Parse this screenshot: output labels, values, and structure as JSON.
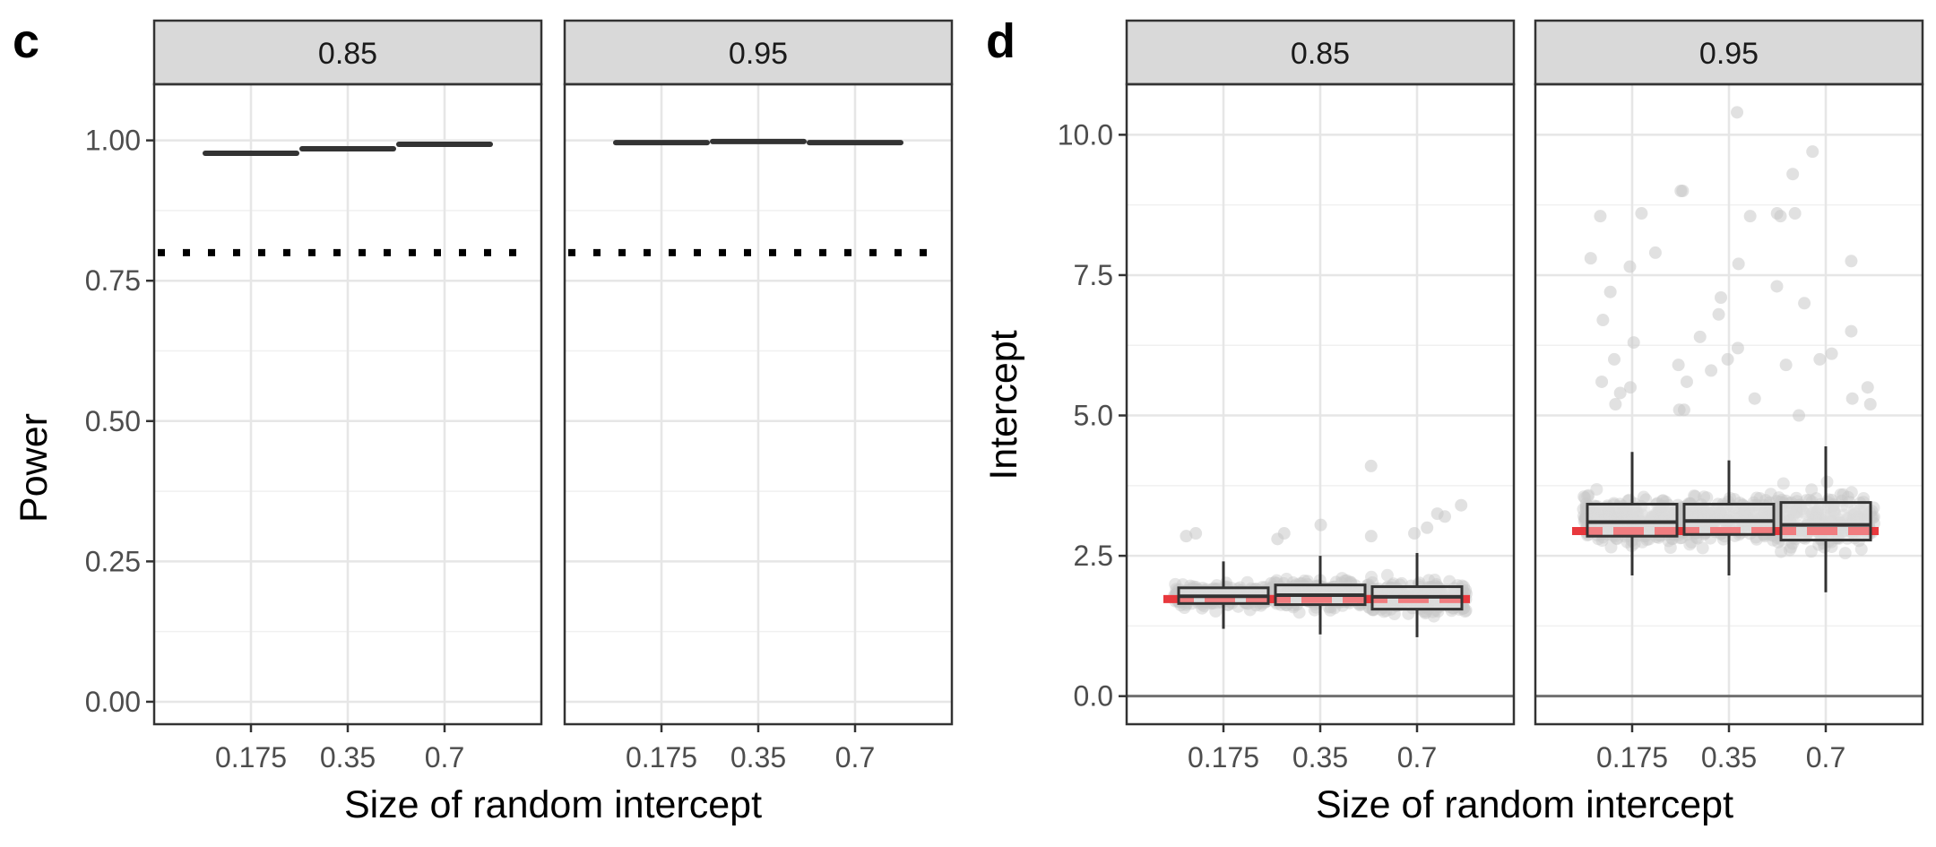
{
  "chart_data": [
    {
      "panel": "c",
      "type": "scatter",
      "facets": [
        "0.85",
        "0.95"
      ],
      "categories": [
        "0.175",
        "0.35",
        "0.7"
      ],
      "xlabel": "Size of random intercept",
      "ylabel": "Power",
      "ylim": [
        -0.04,
        1.1
      ],
      "yticks": [
        "0.00",
        "0.25",
        "0.50",
        "0.75",
        "1.00"
      ],
      "yticks_values": [
        0,
        0.25,
        0.5,
        0.75,
        1.0
      ],
      "grid": true,
      "reference_line": {
        "y": 0.8,
        "style": "dotted"
      },
      "series": [
        {
          "facet": "0.85",
          "values": [
            0.977,
            0.985,
            0.993
          ]
        },
        {
          "facet": "0.95",
          "values": [
            0.996,
            0.998,
            0.996
          ]
        }
      ]
    },
    {
      "panel": "d",
      "type": "box",
      "facets": [
        "0.85",
        "0.95"
      ],
      "categories": [
        "0.175",
        "0.35",
        "0.7"
      ],
      "xlabel": "Size of random intercept",
      "ylabel": "Intercept",
      "ylim": [
        -0.5,
        10.9
      ],
      "yticks": [
        "0.0",
        "2.5",
        "5.0",
        "7.5",
        "10.0"
      ],
      "yticks_values": [
        0,
        2.5,
        5,
        7.5,
        10
      ],
      "grid": true,
      "reference_line": {
        "y": 0,
        "style": "solid",
        "color": "#707070"
      },
      "point_color": "#c8c8c8",
      "true_value_color": "#e8383d",
      "boxes": [
        {
          "facet": "0.85",
          "category": "0.175",
          "whisker_low": 1.2,
          "q1": 1.65,
          "median": 1.78,
          "q3": 1.93,
          "whisker_high": 2.4,
          "true_value": 1.73,
          "spread_low": 1.2,
          "spread_high": 2.6
        },
        {
          "facet": "0.85",
          "category": "0.35",
          "whisker_low": 1.1,
          "q1": 1.63,
          "median": 1.8,
          "q3": 1.98,
          "whisker_high": 2.5,
          "true_value": 1.73,
          "spread_low": 1.15,
          "spread_high": 2.7
        },
        {
          "facet": "0.85",
          "category": "0.7",
          "whisker_low": 1.05,
          "q1": 1.55,
          "median": 1.77,
          "q3": 1.95,
          "whisker_high": 2.55,
          "true_value": 1.73,
          "spread_low": 1.0,
          "spread_high": 2.7
        },
        {
          "facet": "0.95",
          "category": "0.175",
          "whisker_low": 2.15,
          "q1": 2.85,
          "median": 3.1,
          "q3": 3.42,
          "whisker_high": 4.35,
          "true_value": 2.94,
          "spread_low": 2.2,
          "spread_high": 4.8
        },
        {
          "facet": "0.95",
          "category": "0.35",
          "whisker_low": 2.15,
          "q1": 2.88,
          "median": 3.12,
          "q3": 3.42,
          "whisker_high": 4.2,
          "true_value": 2.94,
          "spread_low": 2.1,
          "spread_high": 4.8
        },
        {
          "facet": "0.95",
          "category": "0.7",
          "whisker_low": 1.85,
          "q1": 2.78,
          "median": 3.05,
          "q3": 3.45,
          "whisker_high": 4.45,
          "true_value": 2.94,
          "spread_low": 1.9,
          "spread_high": 4.9
        }
      ],
      "outliers": [
        {
          "facet": "0.85",
          "category": "0.175",
          "values": [
            2.9,
            2.85
          ]
        },
        {
          "facet": "0.85",
          "category": "0.35",
          "values": [
            2.8,
            2.9,
            3.05
          ]
        },
        {
          "facet": "0.85",
          "category": "0.7",
          "values": [
            4.1,
            3.4,
            3.2,
            3.0,
            2.9,
            2.85,
            3.25
          ]
        },
        {
          "facet": "0.95",
          "category": "0.175",
          "values": [
            7.9,
            7.8,
            7.2,
            8.6,
            8.55,
            7.65,
            6.7,
            6.3,
            5.9,
            5.5,
            5.4,
            5.2,
            5.6,
            6.0,
            5.1
          ]
        },
        {
          "facet": "0.95",
          "category": "0.35",
          "values": [
            10.4,
            9.0,
            9.0,
            8.6,
            8.55,
            7.7,
            7.1,
            6.8,
            6.4,
            6.0,
            5.8,
            5.6,
            5.3,
            5.1,
            6.2
          ]
        },
        {
          "facet": "0.95",
          "category": "0.7",
          "values": [
            9.7,
            9.3,
            8.6,
            8.55,
            7.75,
            7.3,
            7.0,
            6.5,
            6.1,
            6.0,
            5.9,
            5.5,
            5.3,
            5.2,
            5.0
          ]
        }
      ]
    }
  ],
  "labels": {
    "panel_c": "c",
    "panel_d": "d",
    "strip_left": "0.85",
    "strip_right": "0.95"
  }
}
